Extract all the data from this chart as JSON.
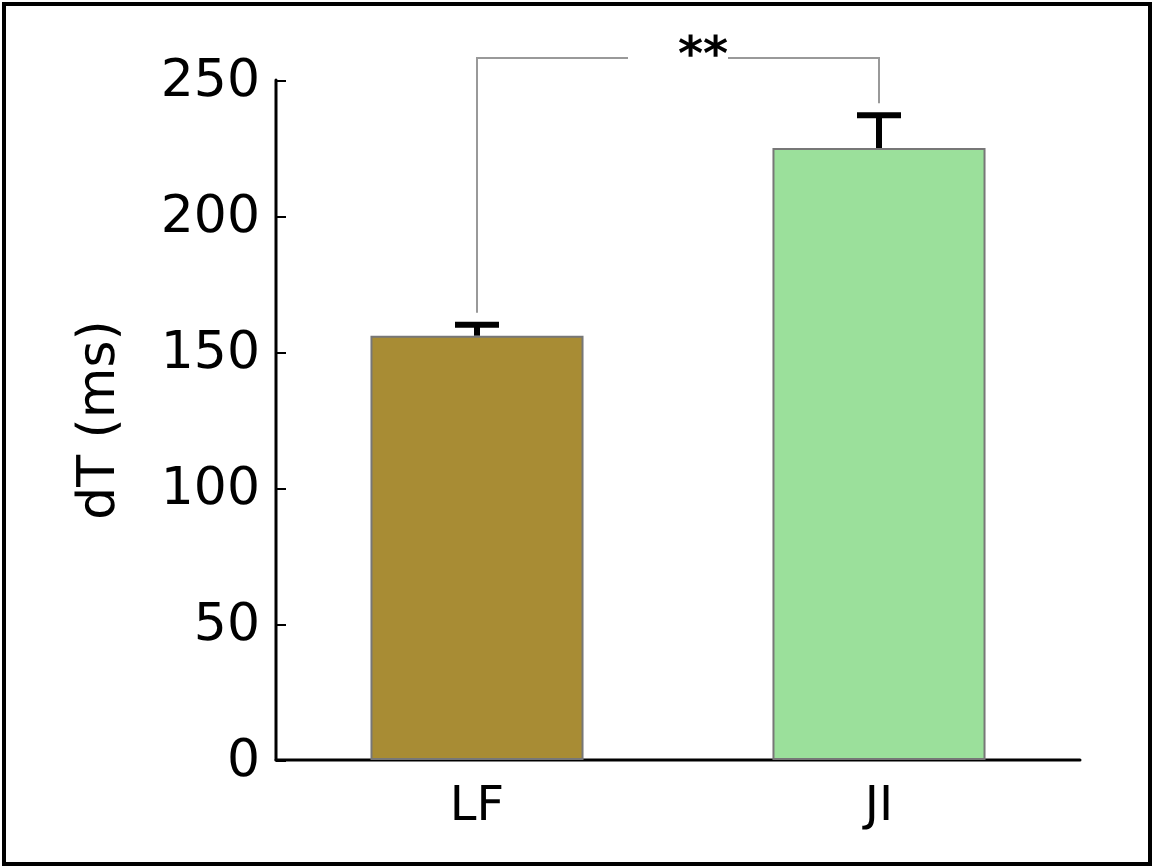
{
  "chart_data": {
    "type": "bar",
    "ylabel": "dT (ms)",
    "categories": [
      "LF",
      "JI"
    ],
    "values": [
      156,
      225
    ],
    "colors": [
      "#a88c34",
      "#9be09b"
    ],
    "errors": [
      [
        156,
        160
      ],
      [
        225,
        237
      ]
    ],
    "ylim": [
      0,
      250
    ],
    "yticks": [
      0,
      50,
      100,
      150,
      200,
      250
    ],
    "grid": false,
    "annotations": [
      "**"
    ]
  }
}
